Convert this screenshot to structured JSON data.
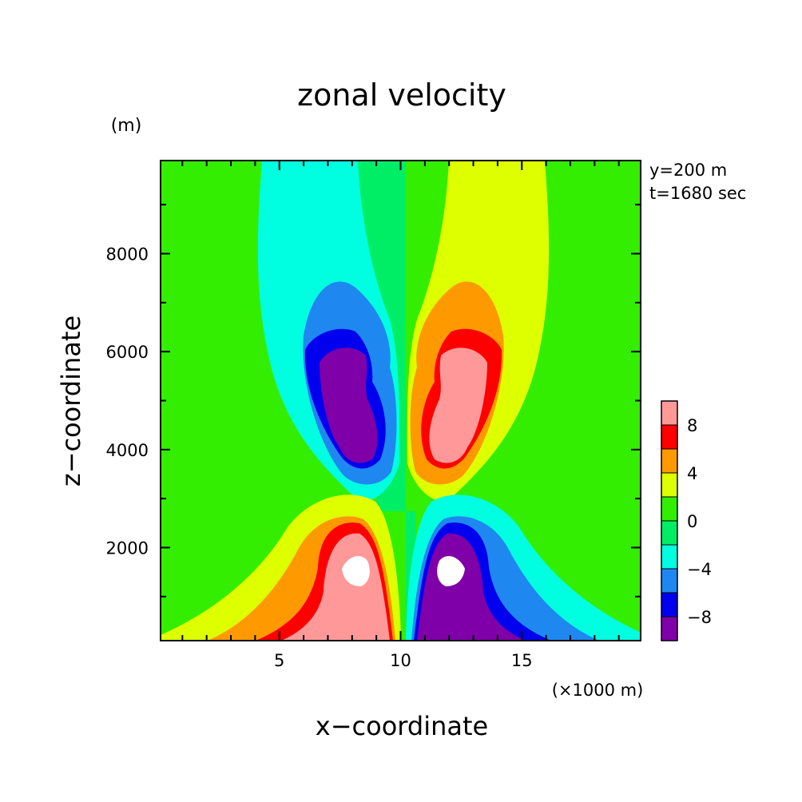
{
  "chart_data": {
    "type": "heatmap",
    "title": "zonal velocity",
    "xlabel": "x−coordinate",
    "ylabel": "z−coordinate",
    "x_unit": "(×1000 m)",
    "y_unit": "(m)",
    "annotations": [
      "y=200 m",
      "t=1680 sec"
    ],
    "xlim": [
      0.1,
      19.9
    ],
    "ylim": [
      100,
      9900
    ],
    "x_ticks": [
      5,
      10,
      15
    ],
    "y_ticks": [
      2000,
      4000,
      6000,
      8000
    ],
    "x_tick_labels": [
      "5",
      "10",
      "15"
    ],
    "y_tick_labels": [
      "2000",
      "4000",
      "6000",
      "8000"
    ],
    "colorbar": {
      "levels": [
        -10,
        -8,
        -6,
        -4,
        -2,
        0,
        2,
        4,
        6,
        8,
        10
      ],
      "colors": [
        "#7f00a8",
        "#0000ee",
        "#1e88f0",
        "#00ffe0",
        "#00ee66",
        "#33ee00",
        "#ddff00",
        "#ff9900",
        "#ff0000",
        "#ff9999"
      ],
      "tick_labels": [
        {
          "value": 8,
          "label": "8"
        },
        {
          "value": 4,
          "label": "4"
        },
        {
          "value": 0,
          "label": "0"
        },
        {
          "value": -4,
          "label": "−4"
        },
        {
          "value": -8,
          "label": "−8"
        }
      ]
    },
    "features": [
      {
        "name": "upper negative vortex",
        "x": 8.0,
        "z": 5200,
        "min": -10
      },
      {
        "name": "upper positive vortex",
        "x": 12.0,
        "z": 5200,
        "max": 10
      },
      {
        "name": "lower positive vortex",
        "x": 8.0,
        "z": 1600,
        "max": 11
      },
      {
        "name": "lower negative vortex",
        "x": 12.0,
        "z": 1600,
        "min": -11
      }
    ]
  }
}
